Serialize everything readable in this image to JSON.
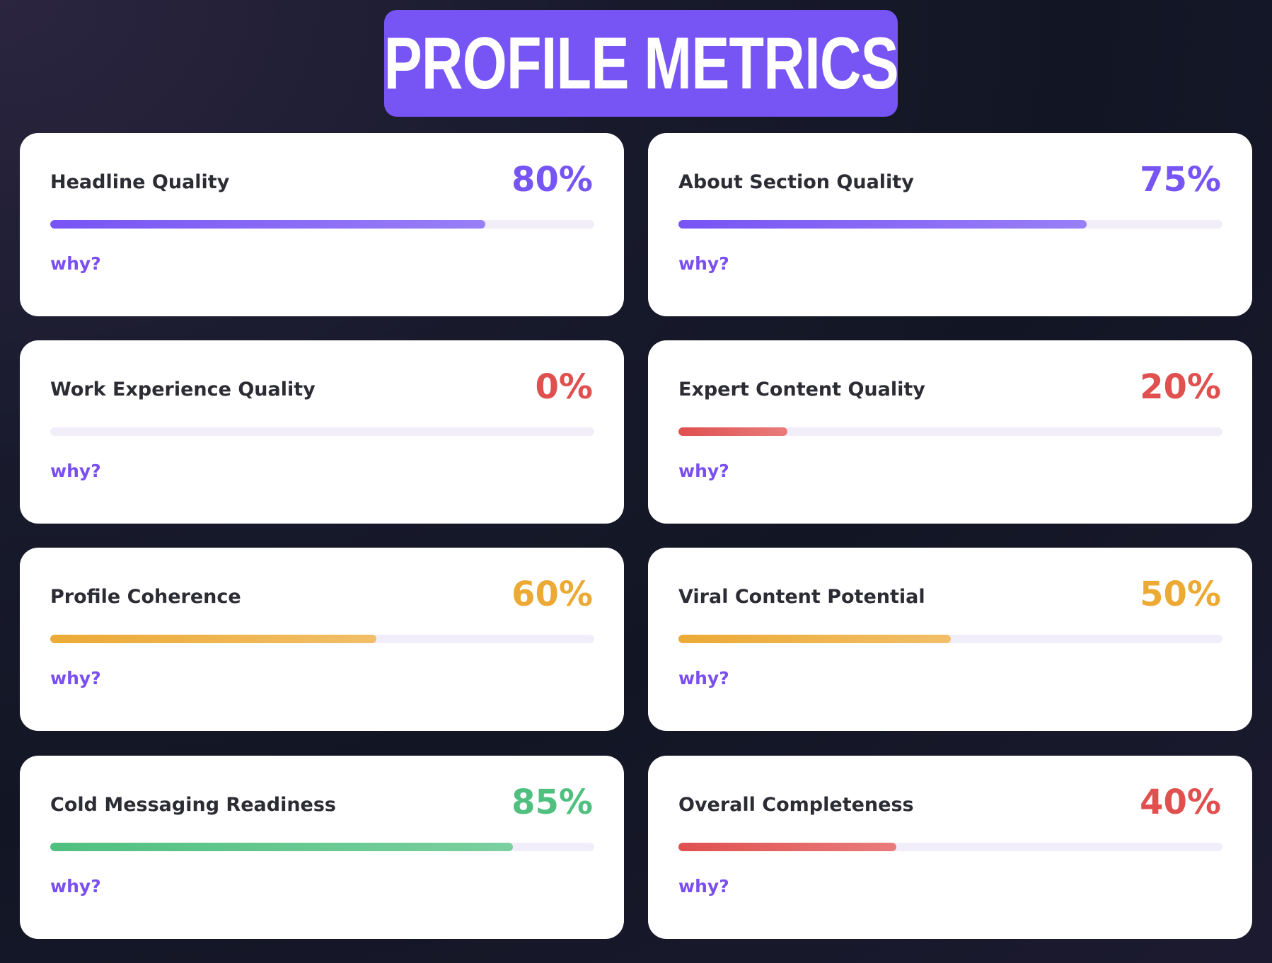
{
  "header": {
    "title": "PROFILE METRICS",
    "background_color": "#7754f4"
  },
  "palette": {
    "purple": "#7754f4",
    "red": "#e0504f",
    "orange": "#ecaa35",
    "green": "#4fc07f",
    "track": "#f1eefa",
    "link": "#7a4ef0"
  },
  "metrics": [
    {
      "label": "Headline Quality",
      "value_text": "80%",
      "value": 80,
      "color": "#7754f4",
      "why_label": "why?"
    },
    {
      "label": "About Section Quality",
      "value_text": "75%",
      "value": 75,
      "color": "#7754f4",
      "why_label": "why?"
    },
    {
      "label": "Work Experience Quality",
      "value_text": "0%",
      "value": 0,
      "color": "#e0504f",
      "why_label": "why?"
    },
    {
      "label": "Expert Content Quality",
      "value_text": "20%",
      "value": 20,
      "color": "#e0504f",
      "why_label": "why?"
    },
    {
      "label": "Profile Coherence",
      "value_text": "60%",
      "value": 60,
      "color": "#ecaa35",
      "why_label": "why?"
    },
    {
      "label": "Viral Content Potential",
      "value_text": "50%",
      "value": 50,
      "color": "#ecaa35",
      "why_label": "why?"
    },
    {
      "label": "Cold Messaging Readiness",
      "value_text": "85%",
      "value": 85,
      "color": "#4fc07f",
      "why_label": "why?"
    },
    {
      "label": "Overall Completeness",
      "value_text": "40%",
      "value": 40,
      "color": "#e0504f",
      "why_label": "why?"
    }
  ]
}
